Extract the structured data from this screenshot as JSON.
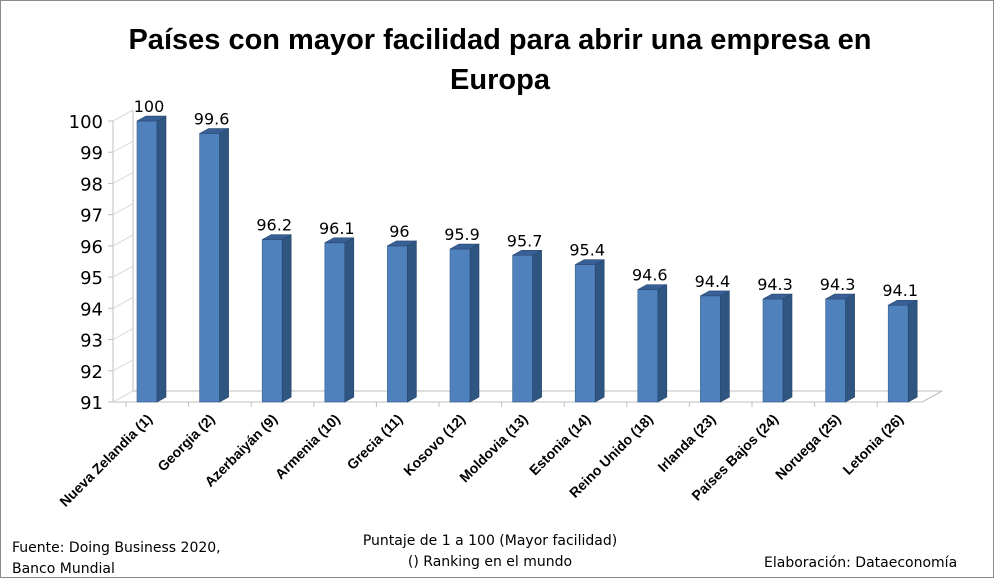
{
  "chart_data": {
    "type": "bar",
    "title": "Países con mayor facilidad para abrir una empresa en Europa",
    "xlabel": "Puntaje de 1 a 100 (Mayor facilidad)",
    "xlabel_note": "() Ranking en el mundo",
    "ylabel": "",
    "ylim": [
      91,
      100
    ],
    "yticks": [
      "91",
      "92",
      "93",
      "94",
      "95",
      "96",
      "97",
      "98",
      "99",
      "100"
    ],
    "categories": [
      "Nueva Zelandia (1)",
      "Georgia (2)",
      "Azerbaiyán (9)",
      "Armenia (10)",
      "Grecia (11)",
      "Kosovo (12)",
      "Moldovia (13)",
      "Estonia (14)",
      "Reino Unido (18)",
      "Irlanda (23)",
      "Países Bajos (24)",
      "Noruega (25)",
      "Letonia (26)"
    ],
    "values": [
      100,
      99.6,
      96.2,
      96.1,
      96,
      95.9,
      95.7,
      95.4,
      94.6,
      94.4,
      94.3,
      94.3,
      94.1
    ],
    "value_labels": [
      "100",
      "99.6",
      "96.2",
      "96.1",
      "96",
      "95.9",
      "95.7",
      "95.4",
      "94.6",
      "94.4",
      "94.3",
      "94.3",
      "94.1"
    ],
    "bar_color": "#4f81bd",
    "grid": false,
    "legend": "none",
    "three_d": true
  },
  "footer": {
    "source_line1": "Fuente: Doing Business 2020,",
    "source_line2": "Banco Mundial",
    "credit": "Elaboración: Dataeconomía"
  }
}
